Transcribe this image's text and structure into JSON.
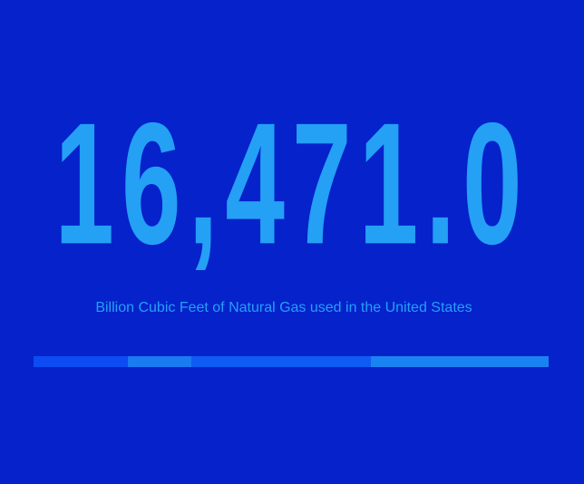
{
  "background_color": "#0522cb",
  "text_color": "#24a0f5",
  "chart_data": {
    "type": "bar",
    "stat_value": "16,471.0",
    "caption": "Billion Cubic Feet of Natural Gas used in the United States",
    "series": [
      {
        "fraction": 0.183,
        "color": "#0c4cf2"
      },
      {
        "fraction": 0.123,
        "color": "#1a7bf3"
      },
      {
        "fraction": 0.349,
        "color": "#0e5cf2"
      },
      {
        "fraction": 0.345,
        "color": "#1a83f3"
      }
    ]
  }
}
